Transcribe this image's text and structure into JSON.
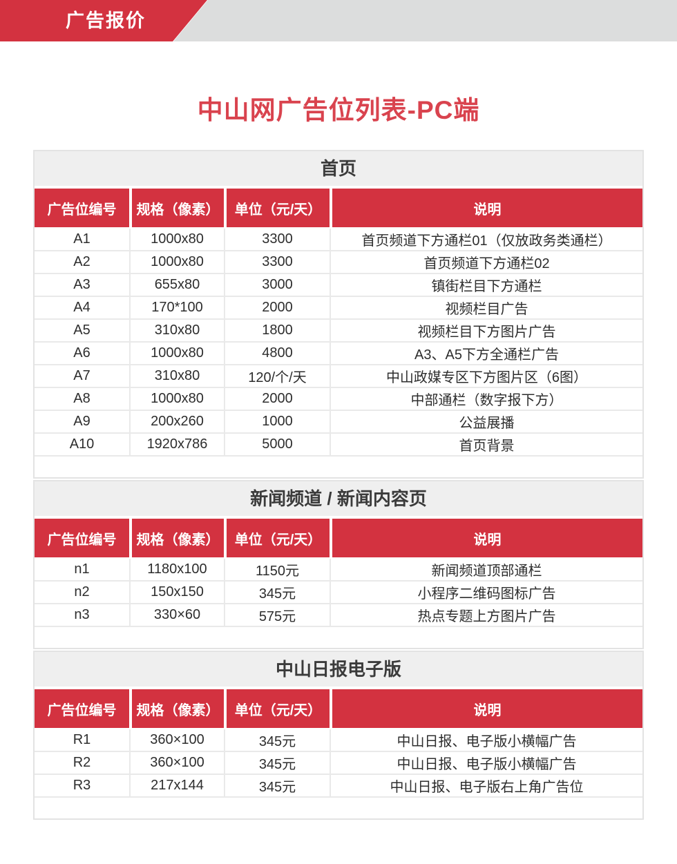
{
  "banner": {
    "label": "广告报价"
  },
  "page_title": "中山网广告位列表-PC端",
  "columns": [
    "广告位编号",
    "规格（像素）",
    "单位（元/天）",
    "说明"
  ],
  "sections": [
    {
      "title": "首页",
      "rows": [
        {
          "id": "A1",
          "spec": "1000x80",
          "unit": "3300",
          "desc": "首页频道下方通栏01（仅放政务类通栏）"
        },
        {
          "id": "A2",
          "spec": "1000x80",
          "unit": "3300",
          "desc": "首页频道下方通栏02"
        },
        {
          "id": "A3",
          "spec": "655x80",
          "unit": "3000",
          "desc": "镇街栏目下方通栏"
        },
        {
          "id": "A4",
          "spec": "170*100",
          "unit": "2000",
          "desc": "视频栏目广告"
        },
        {
          "id": "A5",
          "spec": "310x80",
          "unit": "1800",
          "desc": "视频栏目下方图片广告"
        },
        {
          "id": "A6",
          "spec": "1000x80",
          "unit": "4800",
          "desc": "A3、A5下方全通栏广告"
        },
        {
          "id": "A7",
          "spec": "310x80",
          "unit": "120/个/天",
          "desc": "中山政媒专区下方图片区（6图）"
        },
        {
          "id": "A8",
          "spec": "1000x80",
          "unit": "2000",
          "desc": "中部通栏（数字报下方）"
        },
        {
          "id": "A9",
          "spec": "200x260",
          "unit": "1000",
          "desc": "公益展播"
        },
        {
          "id": "A10",
          "spec": "1920x786",
          "unit": "5000",
          "desc": "首页背景"
        }
      ]
    },
    {
      "title": "新闻频道 / 新闻内容页",
      "rows": [
        {
          "id": "n1",
          "spec": "1180x100",
          "unit": "1150元",
          "desc": "新闻频道顶部通栏"
        },
        {
          "id": "n2",
          "spec": "150x150",
          "unit": "345元",
          "desc": "小程序二维码图标广告"
        },
        {
          "id": "n3",
          "spec": "330×60",
          "unit": "575元",
          "desc": "热点专题上方图片广告"
        }
      ]
    },
    {
      "title": "中山日报电子版",
      "rows": [
        {
          "id": "R1",
          "spec": "360×100",
          "unit": "345元",
          "desc": "中山日报、电子版小横幅广告"
        },
        {
          "id": "R2",
          "spec": "360×100",
          "unit": "345元",
          "desc": "中山日报、电子版小横幅广告"
        },
        {
          "id": "R3",
          "spec": "217x144",
          "unit": "345元",
          "desc": "中山日报、电子版右上角广告位"
        }
      ]
    }
  ],
  "colors": {
    "accent_red": "#d33240",
    "title_red": "#d9434e",
    "banner_gray": "#dcdddd",
    "section_header_bg": "#efefef",
    "table_border": "#e3e3e3",
    "row_separator": "#e9e9e9",
    "text_dark": "#2d2d2d"
  }
}
